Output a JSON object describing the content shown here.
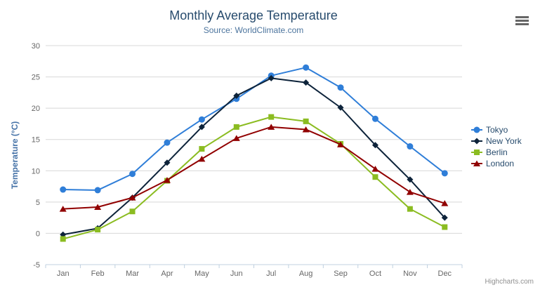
{
  "chart_data": {
    "type": "line",
    "title": "Monthly Average Temperature",
    "subtitle": "Source: WorldClimate.com",
    "xlabel": "",
    "ylabel": "Temperature (°C)",
    "ylim": [
      -5,
      30
    ],
    "ytick_step": 5,
    "ytick_labels": [
      "-5",
      "0",
      "5",
      "10",
      "15",
      "20",
      "25",
      "30"
    ],
    "grid": true,
    "legend_position": "right",
    "categories": [
      "Jan",
      "Feb",
      "Mar",
      "Apr",
      "May",
      "Jun",
      "Jul",
      "Aug",
      "Sep",
      "Oct",
      "Nov",
      "Dec"
    ],
    "series": [
      {
        "name": "Tokyo",
        "color": "#2f7ed8",
        "marker": "circle",
        "values": [
          7.0,
          6.9,
          9.5,
          14.5,
          18.2,
          21.5,
          25.2,
          26.5,
          23.3,
          18.3,
          13.9,
          9.6
        ]
      },
      {
        "name": "New York",
        "color": "#0d233a",
        "marker": "diamond",
        "values": [
          -0.2,
          0.8,
          5.7,
          11.3,
          17.0,
          22.0,
          24.8,
          24.1,
          20.1,
          14.1,
          8.6,
          2.5
        ]
      },
      {
        "name": "Berlin",
        "color": "#8bbc21",
        "marker": "square",
        "values": [
          -0.9,
          0.6,
          3.5,
          8.4,
          13.5,
          17.0,
          18.6,
          17.9,
          14.3,
          9.0,
          3.9,
          1.0
        ]
      },
      {
        "name": "London",
        "color": "#910000",
        "marker": "triangle",
        "values": [
          3.9,
          4.2,
          5.7,
          8.5,
          11.9,
          15.2,
          17.0,
          16.6,
          14.2,
          10.3,
          6.6,
          4.8
        ]
      }
    ]
  },
  "credits": {
    "label": "Highcharts.com"
  },
  "export_button": {
    "icon": "hamburger-menu-icon"
  },
  "colors": {
    "title": "#274b6d",
    "subtitle": "#4d759e",
    "yaxis_title": "#4572a7",
    "axis_label": "#666666",
    "grid_line": "#d8d8d8",
    "axis_line": "#c0d0e0",
    "legend_text": "#274b6d",
    "credits": "#909090",
    "export_icon": "#666666",
    "background": "#ffffff"
  }
}
